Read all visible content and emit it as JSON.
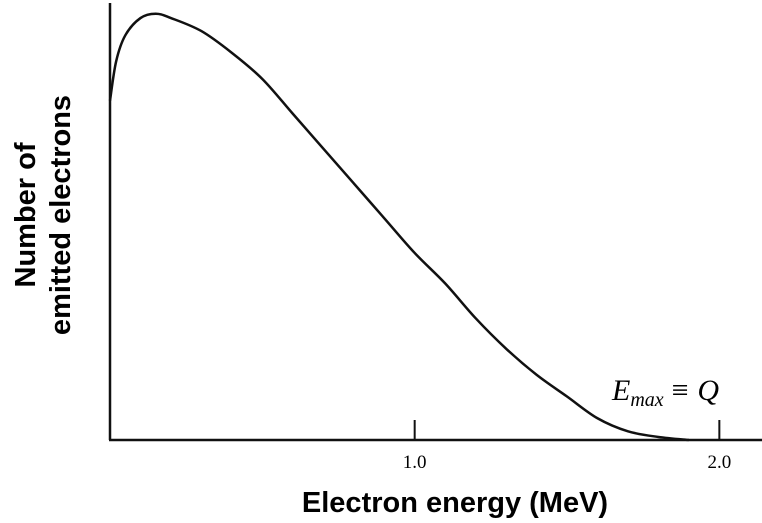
{
  "chart_data": {
    "type": "line",
    "x_label": "Electron energy (MeV)",
    "y_label": [
      "Number of",
      "emitted electrons"
    ],
    "annotation": {
      "symbol": "E",
      "subscript": "max",
      "relation": "≡ Q"
    },
    "x": [
      0,
      0.02,
      0.05,
      0.1,
      0.15,
      0.2,
      0.3,
      0.4,
      0.5,
      0.6,
      0.7,
      0.8,
      0.9,
      1.0,
      1.1,
      1.2,
      1.3,
      1.4,
      1.5,
      1.6,
      1.7,
      1.8,
      1.9
    ],
    "series": [
      {
        "color": "#111111",
        "values": [
          0.78,
          0.87,
          0.93,
          0.97,
          0.98,
          0.97,
          0.94,
          0.89,
          0.83,
          0.75,
          0.67,
          0.59,
          0.51,
          0.43,
          0.36,
          0.28,
          0.21,
          0.15,
          0.1,
          0.05,
          0.02,
          0.007,
          0
        ]
      }
    ],
    "xlim": [
      0,
      2.14
    ],
    "ylim": [
      0,
      1
    ],
    "xticks": [
      {
        "value": 1,
        "label": "1.0"
      },
      {
        "value": 2,
        "label": "2.0"
      }
    ]
  }
}
